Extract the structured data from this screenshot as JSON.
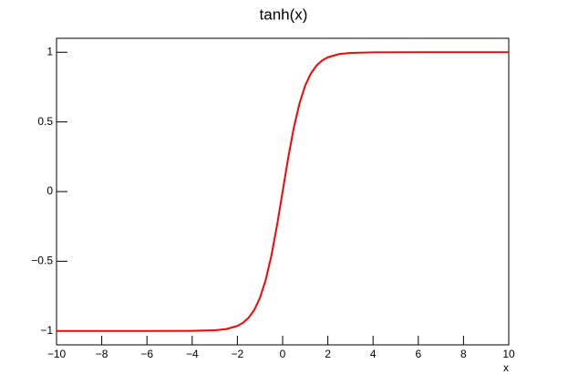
{
  "chart_data": {
    "type": "line",
    "title": "tanh(x)",
    "x_label": "x",
    "x": [
      -10,
      -8,
      -6,
      -4,
      -3,
      -2.5,
      -2,
      -1.75,
      -1.5,
      -1.25,
      -1,
      -0.75,
      -0.5,
      -0.25,
      0,
      0.25,
      0.5,
      0.75,
      1,
      1.25,
      1.5,
      1.75,
      2,
      2.5,
      3,
      4,
      6,
      8,
      10
    ],
    "series": [
      {
        "name": "tanh(x)",
        "color": "#ff0000",
        "values": [
          -1,
          -1,
          -1,
          -0.999,
          -0.995,
          -0.987,
          -0.964,
          -0.941,
          -0.905,
          -0.848,
          -0.762,
          -0.635,
          -0.462,
          -0.245,
          0,
          0.245,
          0.462,
          0.635,
          0.762,
          0.848,
          0.905,
          0.941,
          0.964,
          0.987,
          0.995,
          0.999,
          1,
          1,
          1
        ]
      }
    ],
    "xlim": [
      -10,
      10
    ],
    "xticks": [
      {
        "value": -10,
        "label": "−10"
      },
      {
        "value": -8,
        "label": "−8"
      },
      {
        "value": -6,
        "label": "−6"
      },
      {
        "value": -4,
        "label": "−4"
      },
      {
        "value": -2,
        "label": "−2"
      },
      0,
      2,
      4,
      6,
      8,
      10
    ],
    "ylim": [
      -1.1,
      1.1
    ],
    "yticks": [
      {
        "value": -1,
        "label": "−1"
      },
      {
        "value": -0.5,
        "label": "−0.5"
      },
      0,
      0.5,
      1
    ],
    "grid": false
  }
}
